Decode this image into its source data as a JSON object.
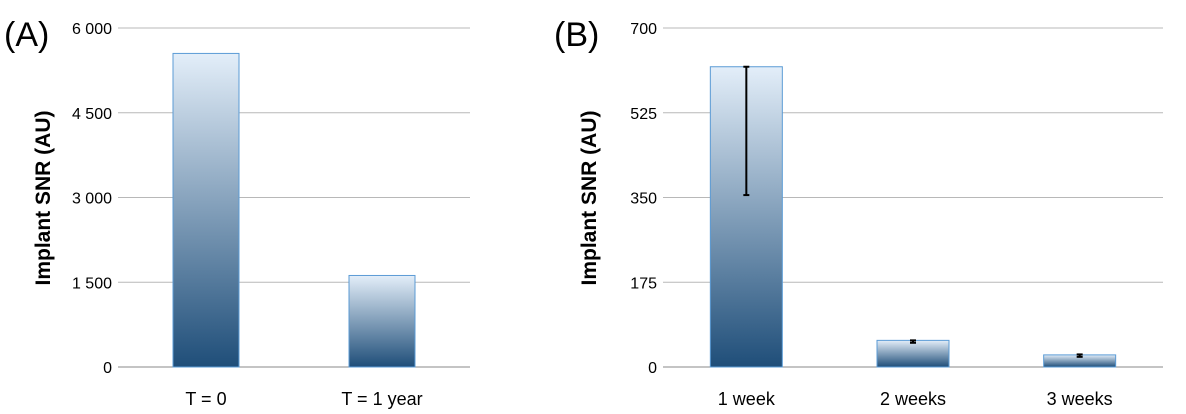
{
  "chart_data": [
    {
      "panel": "(A)",
      "type": "bar",
      "title": "",
      "xlabel": "",
      "ylabel": "Implant SNR  (AU)",
      "categories": [
        "T = 0",
        "T = 1 year"
      ],
      "values": [
        5550,
        1620
      ],
      "ylim": [
        0,
        6000
      ],
      "yticks": [
        0,
        1500,
        3000,
        4500,
        6000
      ],
      "ytick_labels": [
        "0",
        "1 500",
        "3 000",
        "4 500",
        "6 000"
      ],
      "grid": true,
      "error_bars": null,
      "colors": {
        "bar_top": "#e3eef9",
        "bar_bottom": "#1f4e79",
        "bar_edge": "#5b9bd5",
        "grid": "#b8b8b8"
      }
    },
    {
      "panel": "(B)",
      "type": "bar",
      "title": "",
      "xlabel": "",
      "ylabel": "Implant SNR  (AU)",
      "categories": [
        "1 week",
        "2 weeks",
        "3 weeks"
      ],
      "values": [
        620,
        55,
        25
      ],
      "ylim": [
        0,
        700
      ],
      "yticks": [
        0,
        175,
        350,
        525,
        700
      ],
      "ytick_labels": [
        "0",
        "175",
        "350",
        "525",
        "700"
      ],
      "grid": true,
      "error_bars": [
        [
          355,
          620
        ],
        [
          50,
          55
        ],
        [
          21,
          26
        ]
      ],
      "colors": {
        "bar_top": "#e3eef9",
        "bar_bottom": "#1f4e79",
        "bar_edge": "#5b9bd5",
        "grid": "#b8b8b8"
      }
    }
  ]
}
